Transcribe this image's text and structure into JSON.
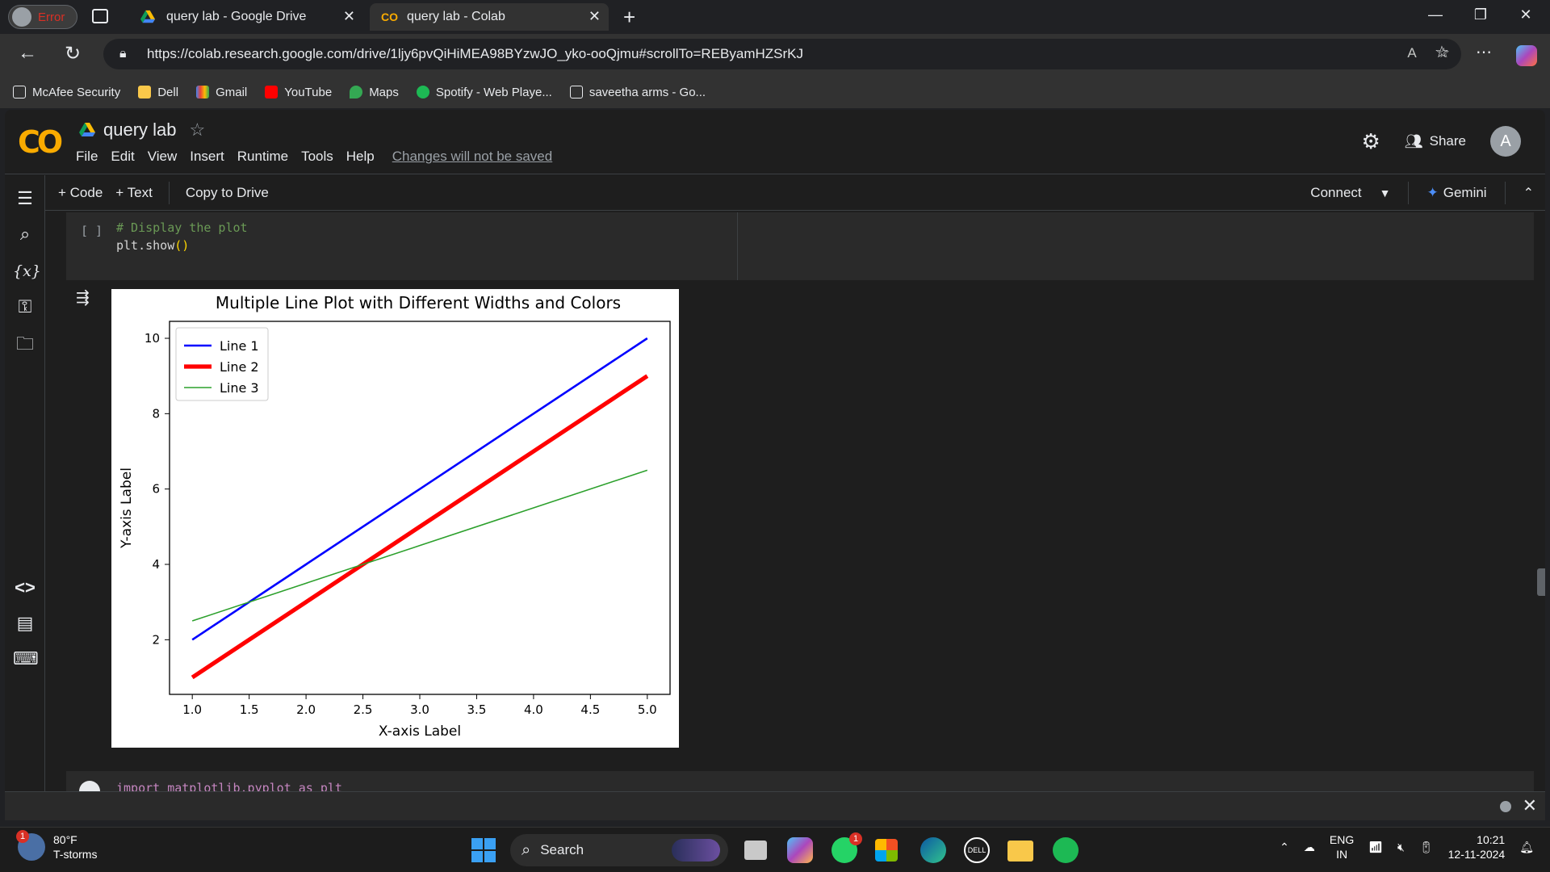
{
  "browser": {
    "profile_status": "Error",
    "tabs": [
      {
        "title": "query lab - Google Drive",
        "active": false
      },
      {
        "title": "query lab - Colab",
        "active": true
      }
    ],
    "url": "https://colab.research.google.com/drive/1ljy6pvQiHiMEA98BYzwJO_yko-ooQjmu#scrollTo=REByamHZSrKJ",
    "bookmarks": [
      "McAfee Security",
      "Dell",
      "Gmail",
      "YouTube",
      "Maps",
      "Spotify - Web Playe...",
      "saveetha arms - Go..."
    ]
  },
  "colab": {
    "notebook_title": "query lab",
    "menu": [
      "File",
      "Edit",
      "View",
      "Insert",
      "Runtime",
      "Tools",
      "Help"
    ],
    "unsaved_notice": "Changes will not be saved",
    "share_label": "Share",
    "avatar_letter": "A",
    "toolbar": {
      "add_code": "+ Code",
      "add_text": "+ Text",
      "copy_to_drive": "Copy to Drive",
      "connect": "Connect",
      "gemini": "Gemini"
    },
    "cell1": {
      "bracket": "[ ]",
      "comment": "# Display the plot",
      "code_fn": "plt.show",
      "code_parens": "()"
    },
    "cell2": {
      "code": "import matplotlib.pyplot as plt"
    }
  },
  "chart_data": {
    "type": "line",
    "title": "Multiple Line Plot with Different Widths and Colors",
    "xlabel": "X-axis Label",
    "ylabel": "Y-axis Label",
    "xlim": [
      0.8,
      5.2
    ],
    "ylim": [
      0.55,
      10.45
    ],
    "xticks": [
      "1.0",
      "1.5",
      "2.0",
      "2.5",
      "3.0",
      "3.5",
      "4.0",
      "4.5",
      "5.0"
    ],
    "yticks": [
      "2",
      "4",
      "6",
      "8",
      "10"
    ],
    "legend_position": "upper-left",
    "grid": false,
    "x": [
      1,
      2,
      3,
      4,
      5
    ],
    "series": [
      {
        "name": "Line 1",
        "values": [
          2,
          4,
          6,
          8,
          10
        ],
        "color": "#0000ff",
        "linewidth": 2
      },
      {
        "name": "Line 2",
        "values": [
          1,
          3,
          5,
          7,
          9
        ],
        "color": "#ff0000",
        "linewidth": 4
      },
      {
        "name": "Line 3",
        "values": [
          2.5,
          3.5,
          4.5,
          5.5,
          6.5
        ],
        "color": "#2ca02c",
        "linewidth": 1.2
      }
    ]
  },
  "taskbar": {
    "weather_temp": "80°F",
    "weather_desc": "T-storms",
    "weather_badge": "1",
    "search_label": "Search",
    "whatsapp_badge": "1",
    "language_1": "ENG",
    "language_2": "IN",
    "time": "10:21",
    "date": "12-11-2024"
  }
}
